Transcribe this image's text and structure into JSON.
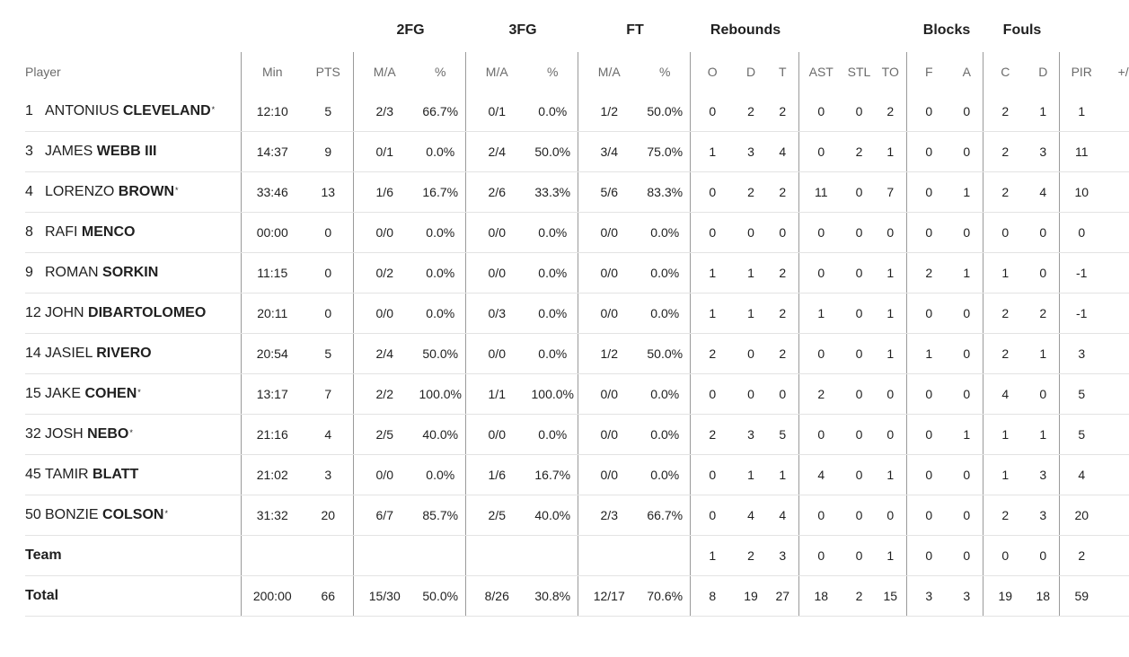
{
  "group_headers": {
    "fg2": "2FG",
    "fg3": "3FG",
    "ft": "FT",
    "rebounds": "Rebounds",
    "blocks": "Blocks",
    "fouls": "Fouls"
  },
  "columns": {
    "player": "Player",
    "min": "Min",
    "pts": "PTS",
    "fg2_ma": "M/A",
    "fg2_pct": "%",
    "fg3_ma": "M/A",
    "fg3_pct": "%",
    "ft_ma": "M/A",
    "ft_pct": "%",
    "reb_o": "O",
    "reb_d": "D",
    "reb_t": "T",
    "ast": "AST",
    "stl": "STL",
    "to": "TO",
    "blk_f": "F",
    "blk_a": "A",
    "foul_c": "C",
    "foul_d": "D",
    "pir": "PIR",
    "plus_minus": "+/-"
  },
  "starter_mark": "*",
  "players": [
    {
      "number": "1",
      "first": "ANTONIUS",
      "last": "CLEVELAND",
      "starter": true,
      "min": "12:10",
      "pts": "5",
      "fg2_ma": "2/3",
      "fg2_pct": "66.7%",
      "fg3_ma": "0/1",
      "fg3_pct": "0.0%",
      "ft_ma": "1/2",
      "ft_pct": "50.0%",
      "reb_o": "0",
      "reb_d": "2",
      "reb_t": "2",
      "ast": "0",
      "stl": "0",
      "to": "2",
      "blk_f": "0",
      "blk_a": "0",
      "foul_c": "2",
      "foul_d": "1",
      "pir": "1",
      "plus_minus": ""
    },
    {
      "number": "3",
      "first": "JAMES",
      "last": "WEBB III",
      "starter": false,
      "min": "14:37",
      "pts": "9",
      "fg2_ma": "0/1",
      "fg2_pct": "0.0%",
      "fg3_ma": "2/4",
      "fg3_pct": "50.0%",
      "ft_ma": "3/4",
      "ft_pct": "75.0%",
      "reb_o": "1",
      "reb_d": "3",
      "reb_t": "4",
      "ast": "0",
      "stl": "2",
      "to": "1",
      "blk_f": "0",
      "blk_a": "0",
      "foul_c": "2",
      "foul_d": "3",
      "pir": "11",
      "plus_minus": ""
    },
    {
      "number": "4",
      "first": "LORENZO",
      "last": "BROWN",
      "starter": true,
      "min": "33:46",
      "pts": "13",
      "fg2_ma": "1/6",
      "fg2_pct": "16.7%",
      "fg3_ma": "2/6",
      "fg3_pct": "33.3%",
      "ft_ma": "5/6",
      "ft_pct": "83.3%",
      "reb_o": "0",
      "reb_d": "2",
      "reb_t": "2",
      "ast": "11",
      "stl": "0",
      "to": "7",
      "blk_f": "0",
      "blk_a": "1",
      "foul_c": "2",
      "foul_d": "4",
      "pir": "10",
      "plus_minus": ""
    },
    {
      "number": "8",
      "first": "RAFI",
      "last": "MENCO",
      "starter": false,
      "min": "00:00",
      "pts": "0",
      "fg2_ma": "0/0",
      "fg2_pct": "0.0%",
      "fg3_ma": "0/0",
      "fg3_pct": "0.0%",
      "ft_ma": "0/0",
      "ft_pct": "0.0%",
      "reb_o": "0",
      "reb_d": "0",
      "reb_t": "0",
      "ast": "0",
      "stl": "0",
      "to": "0",
      "blk_f": "0",
      "blk_a": "0",
      "foul_c": "0",
      "foul_d": "0",
      "pir": "0",
      "plus_minus": ""
    },
    {
      "number": "9",
      "first": "ROMAN",
      "last": "SORKIN",
      "starter": false,
      "min": "11:15",
      "pts": "0",
      "fg2_ma": "0/2",
      "fg2_pct": "0.0%",
      "fg3_ma": "0/0",
      "fg3_pct": "0.0%",
      "ft_ma": "0/0",
      "ft_pct": "0.0%",
      "reb_o": "1",
      "reb_d": "1",
      "reb_t": "2",
      "ast": "0",
      "stl": "0",
      "to": "1",
      "blk_f": "2",
      "blk_a": "1",
      "foul_c": "1",
      "foul_d": "0",
      "pir": "-1",
      "plus_minus": ""
    },
    {
      "number": "12",
      "first": "JOHN",
      "last": "DIBARTOLOMEO",
      "starter": false,
      "min": "20:11",
      "pts": "0",
      "fg2_ma": "0/0",
      "fg2_pct": "0.0%",
      "fg3_ma": "0/3",
      "fg3_pct": "0.0%",
      "ft_ma": "0/0",
      "ft_pct": "0.0%",
      "reb_o": "1",
      "reb_d": "1",
      "reb_t": "2",
      "ast": "1",
      "stl": "0",
      "to": "1",
      "blk_f": "0",
      "blk_a": "0",
      "foul_c": "2",
      "foul_d": "2",
      "pir": "-1",
      "plus_minus": ""
    },
    {
      "number": "14",
      "first": "JASIEL",
      "last": "RIVERO",
      "starter": false,
      "min": "20:54",
      "pts": "5",
      "fg2_ma": "2/4",
      "fg2_pct": "50.0%",
      "fg3_ma": "0/0",
      "fg3_pct": "0.0%",
      "ft_ma": "1/2",
      "ft_pct": "50.0%",
      "reb_o": "2",
      "reb_d": "0",
      "reb_t": "2",
      "ast": "0",
      "stl": "0",
      "to": "1",
      "blk_f": "1",
      "blk_a": "0",
      "foul_c": "2",
      "foul_d": "1",
      "pir": "3",
      "plus_minus": ""
    },
    {
      "number": "15",
      "first": "JAKE",
      "last": "COHEN",
      "starter": true,
      "min": "13:17",
      "pts": "7",
      "fg2_ma": "2/2",
      "fg2_pct": "100.0%",
      "fg3_ma": "1/1",
      "fg3_pct": "100.0%",
      "ft_ma": "0/0",
      "ft_pct": "0.0%",
      "reb_o": "0",
      "reb_d": "0",
      "reb_t": "0",
      "ast": "2",
      "stl": "0",
      "to": "0",
      "blk_f": "0",
      "blk_a": "0",
      "foul_c": "4",
      "foul_d": "0",
      "pir": "5",
      "plus_minus": ""
    },
    {
      "number": "32",
      "first": "JOSH",
      "last": "NEBO",
      "starter": true,
      "min": "21:16",
      "pts": "4",
      "fg2_ma": "2/5",
      "fg2_pct": "40.0%",
      "fg3_ma": "0/0",
      "fg3_pct": "0.0%",
      "ft_ma": "0/0",
      "ft_pct": "0.0%",
      "reb_o": "2",
      "reb_d": "3",
      "reb_t": "5",
      "ast": "0",
      "stl": "0",
      "to": "0",
      "blk_f": "0",
      "blk_a": "1",
      "foul_c": "1",
      "foul_d": "1",
      "pir": "5",
      "plus_minus": ""
    },
    {
      "number": "45",
      "first": "TAMIR",
      "last": "BLATT",
      "starter": false,
      "min": "21:02",
      "pts": "3",
      "fg2_ma": "0/0",
      "fg2_pct": "0.0%",
      "fg3_ma": "1/6",
      "fg3_pct": "16.7%",
      "ft_ma": "0/0",
      "ft_pct": "0.0%",
      "reb_o": "0",
      "reb_d": "1",
      "reb_t": "1",
      "ast": "4",
      "stl": "0",
      "to": "1",
      "blk_f": "0",
      "blk_a": "0",
      "foul_c": "1",
      "foul_d": "3",
      "pir": "4",
      "plus_minus": ""
    },
    {
      "number": "50",
      "first": "BONZIE",
      "last": "COLSON",
      "starter": true,
      "min": "31:32",
      "pts": "20",
      "fg2_ma": "6/7",
      "fg2_pct": "85.7%",
      "fg3_ma": "2/5",
      "fg3_pct": "40.0%",
      "ft_ma": "2/3",
      "ft_pct": "66.7%",
      "reb_o": "0",
      "reb_d": "4",
      "reb_t": "4",
      "ast": "0",
      "stl": "0",
      "to": "0",
      "blk_f": "0",
      "blk_a": "0",
      "foul_c": "2",
      "foul_d": "3",
      "pir": "20",
      "plus_minus": ""
    }
  ],
  "summary_rows": [
    {
      "label": "Team",
      "min": "",
      "pts": "",
      "fg2_ma": "",
      "fg2_pct": "",
      "fg3_ma": "",
      "fg3_pct": "",
      "ft_ma": "",
      "ft_pct": "",
      "reb_o": "1",
      "reb_d": "2",
      "reb_t": "3",
      "ast": "0",
      "stl": "0",
      "to": "1",
      "blk_f": "0",
      "blk_a": "0",
      "foul_c": "0",
      "foul_d": "0",
      "pir": "2",
      "plus_minus": ""
    },
    {
      "label": "Total",
      "min": "200:00",
      "pts": "66",
      "fg2_ma": "15/30",
      "fg2_pct": "50.0%",
      "fg3_ma": "8/26",
      "fg3_pct": "30.8%",
      "ft_ma": "12/17",
      "ft_pct": "70.6%",
      "reb_o": "8",
      "reb_d": "19",
      "reb_t": "27",
      "ast": "18",
      "stl": "2",
      "to": "15",
      "blk_f": "3",
      "blk_a": "3",
      "foul_c": "19",
      "foul_d": "18",
      "pir": "59",
      "plus_minus": ""
    }
  ]
}
